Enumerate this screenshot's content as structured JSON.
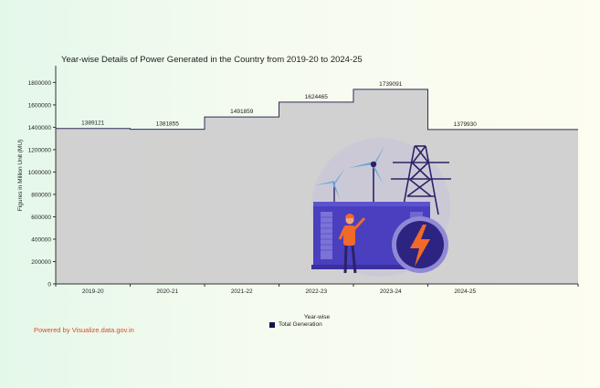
{
  "chart_data": {
    "type": "area",
    "title": "Year-wise Details of Power Generated in the Country from 2019-20 to 2024-25",
    "xlabel": "Year-wise",
    "ylabel": "Figures in Million Unit (MU)",
    "categories": [
      "2019-20",
      "2020-21",
      "2021-22",
      "2022-23",
      "2023-24",
      "2024-25"
    ],
    "series": [
      {
        "name": "Total Generation",
        "values": [
          1389121,
          1381855,
          1491859,
          1624465,
          1739091,
          1379930
        ]
      }
    ],
    "yticks": [
      0,
      200000,
      400000,
      600000,
      800000,
      1000000,
      1200000,
      1400000,
      1600000,
      1800000
    ],
    "ylim": [
      0,
      1950000
    ],
    "legend": "bottom",
    "grid": false,
    "fill_color": "#cfcfcf",
    "line_color": "#2d2d5a"
  },
  "footer": {
    "powered_by": "Powered by Visualize.data.gov.in"
  },
  "illustration": {
    "description_icons": [
      "wind-turbine-icon",
      "power-tower-icon",
      "lightning-bolt-icon",
      "engineer-icon"
    ],
    "colors": {
      "panel": "#4a3fbf",
      "bolt": "#f06a2a",
      "circle": "#d9d6e6"
    }
  }
}
